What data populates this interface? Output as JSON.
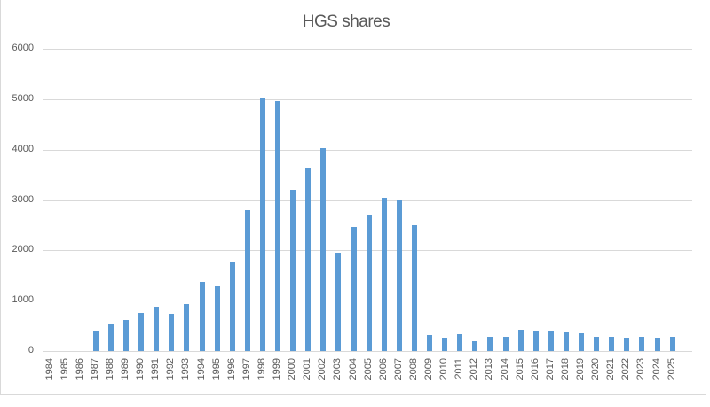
{
  "chart_data": {
    "type": "bar",
    "title": "HGS shares",
    "xlabel": "",
    "ylabel": "",
    "ylim": [
      0,
      6000
    ],
    "yticks": [
      0,
      1000,
      2000,
      3000,
      4000,
      5000,
      6000
    ],
    "grid": true,
    "legend": "none",
    "bar_color": "#5b9bd5",
    "categories": [
      "1984",
      "1985",
      "1986",
      "1987",
      "1988",
      "1989",
      "1990",
      "1991",
      "1992",
      "1993",
      "1994",
      "1995",
      "1996",
      "1997",
      "1998",
      "1999",
      "2000",
      "2001",
      "2002",
      "2003",
      "2004",
      "2005",
      "2006",
      "2007",
      "2008",
      "2009",
      "2010",
      "2011",
      "2012",
      "2013",
      "2014",
      "2015",
      "2016",
      "2017",
      "2018",
      "2019",
      "2020",
      "2021",
      "2022",
      "2023",
      "2024",
      "2025"
    ],
    "values": [
      0,
      0,
      0,
      405,
      545,
      615,
      757,
      880,
      740,
      930,
      1368,
      1303,
      1773,
      2800,
      5030,
      4960,
      3200,
      3640,
      4025,
      1950,
      2460,
      2705,
      3040,
      3005,
      2495,
      314,
      267,
      331,
      198,
      285,
      285,
      424,
      407,
      407,
      390,
      355,
      285,
      285,
      267,
      285,
      267,
      285
    ]
  }
}
